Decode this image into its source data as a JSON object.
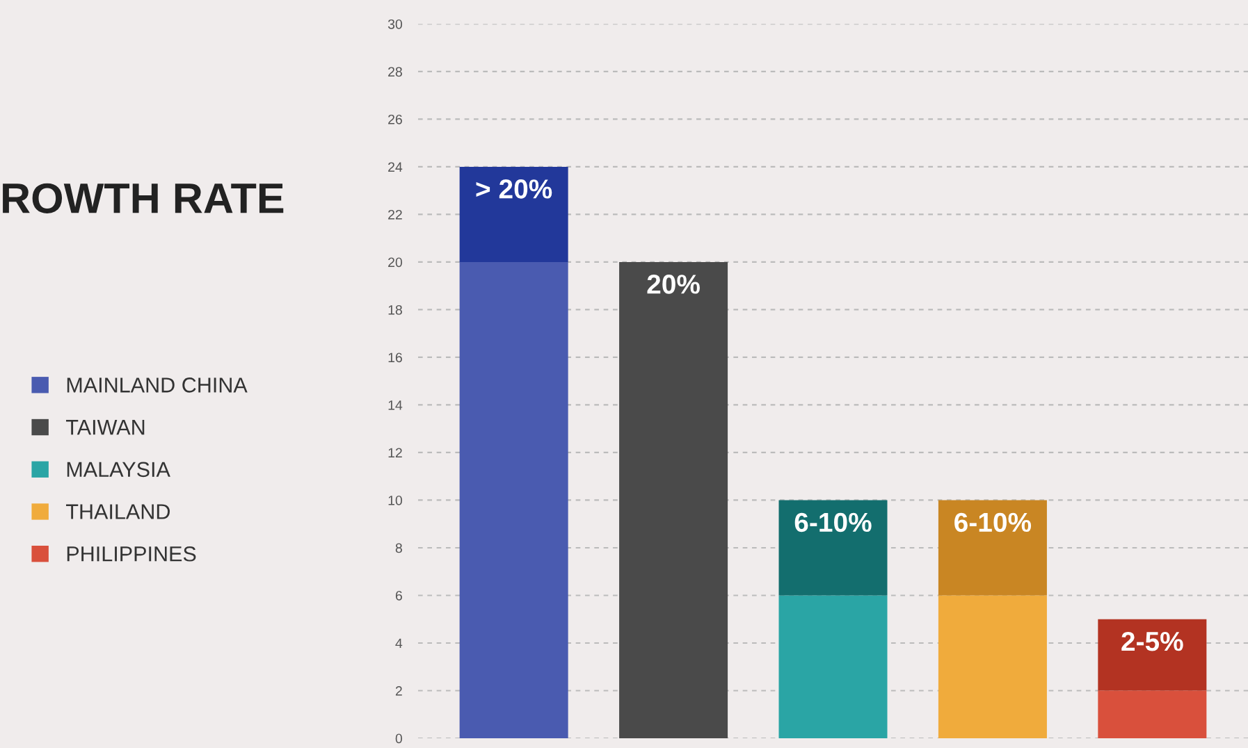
{
  "chart_data": {
    "type": "bar",
    "title": "ROWTH RATE",
    "categories": [
      null,
      null,
      null,
      null,
      null
    ],
    "stacked": true,
    "series": [
      {
        "name": "MAINLAND CHINA",
        "color": "#4a5bb0",
        "values": [
          20,
          null,
          null,
          null,
          null
        ]
      },
      {
        "name": "TAIWAN",
        "color": "#4a4a4a",
        "values": [
          null,
          20,
          null,
          null,
          null
        ]
      },
      {
        "name": "MALAYSIA",
        "color": "#2aa5a5",
        "values": [
          null,
          null,
          6,
          null,
          null
        ]
      },
      {
        "name": "THAILAND",
        "color": "#f0ab3c",
        "values": [
          null,
          null,
          null,
          6,
          null
        ]
      },
      {
        "name": "PHILIPPINES",
        "color": "#d9503c",
        "values": [
          null,
          null,
          null,
          null,
          2
        ]
      },
      {
        "color": "#22389a",
        "values": [
          4,
          null,
          null,
          null,
          null
        ]
      },
      {
        "color": "#136e6e",
        "values": [
          null,
          null,
          4,
          null,
          null
        ]
      },
      {
        "color": "#c98623",
        "values": [
          null,
          null,
          null,
          4,
          null
        ]
      },
      {
        "color": "#b33322",
        "values": [
          null,
          null,
          null,
          null,
          3
        ]
      }
    ],
    "annotations": [
      {
        "text": "> 20%",
        "y": 24
      },
      {
        "text": "20%",
        "y": 20
      },
      {
        "text": "6-10%",
        "y": 10
      },
      {
        "text": "6-10%",
        "y": 10
      },
      {
        "text": "2-5%",
        "y": 5
      }
    ],
    "ylim": [
      0,
      30
    ],
    "yticks": [
      0,
      2,
      4,
      6,
      8,
      10,
      12,
      14,
      16,
      18,
      20,
      22,
      24,
      26,
      28,
      30
    ],
    "grid": "y",
    "legend": "left",
    "tick_labels": "y"
  }
}
